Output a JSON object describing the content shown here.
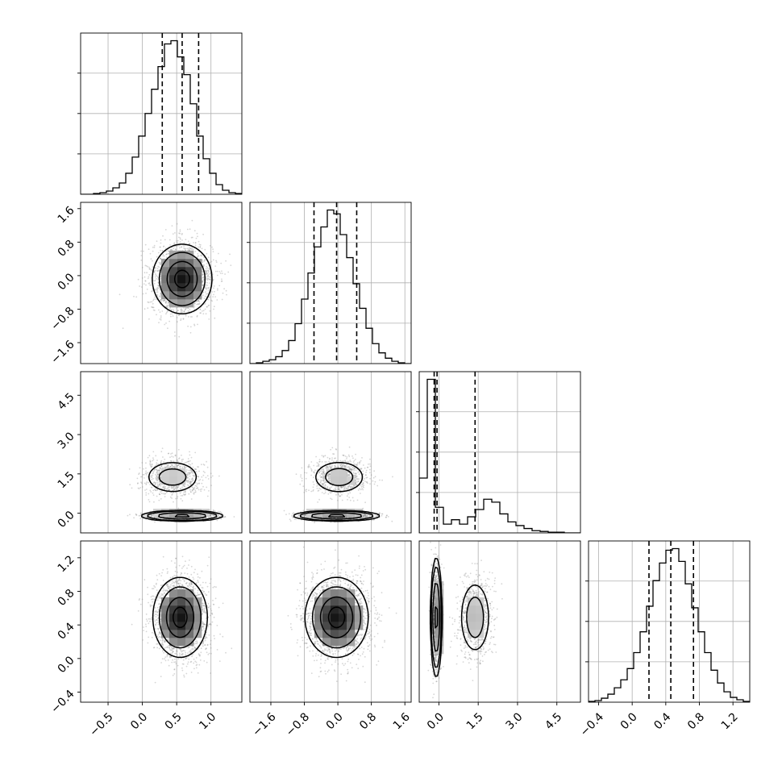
{
  "colors": {
    "line": "#000000",
    "grid": "#b0b0b0",
    "scatter": "#8a8a8a",
    "background": "#ffffff"
  },
  "chart_data": {
    "type": "corner",
    "grid": true,
    "parameters": 4,
    "ranges": [
      [
        -0.9,
        1.45
      ],
      [
        -2.1,
        1.75
      ],
      [
        -0.75,
        5.4
      ],
      [
        -0.52,
        1.4
      ]
    ],
    "ticks": [
      [
        -0.5,
        0.0,
        0.5,
        1.0
      ],
      [
        -1.6,
        -0.8,
        0.0,
        0.8,
        1.6
      ],
      [
        0.0,
        1.5,
        3.0,
        4.5
      ],
      [
        -0.4,
        0.0,
        0.4,
        0.8,
        1.2
      ]
    ],
    "tick_labels": [
      [
        "−0.5",
        "0.0",
        "0.5",
        "1.0"
      ],
      [
        "−1.6",
        "−0.8",
        "0.0",
        "0.8",
        "1.6"
      ],
      [
        "0.0",
        "1.5",
        "3.0",
        "4.5"
      ],
      [
        "−0.4",
        "0.0",
        "0.4",
        "0.8",
        "1.2"
      ]
    ],
    "quantiles": [
      [
        0.29,
        0.58,
        0.82
      ],
      [
        -0.57,
        -0.03,
        0.45
      ],
      [
        -0.18,
        -0.07,
        1.38
      ],
      [
        0.2,
        0.46,
        0.73
      ]
    ],
    "histograms": [
      {
        "type": "histogram",
        "bins": [
          -0.9,
          1.45
        ],
        "counts": [
          0,
          0,
          1,
          2,
          4,
          8,
          14,
          26,
          46,
          72,
          100,
          130,
          158,
          186,
          190,
          170,
          148,
          112,
          72,
          44,
          26,
          12,
          5,
          2,
          1
        ]
      },
      {
        "type": "histogram",
        "bins": [
          -2.1,
          1.75
        ],
        "counts": [
          0,
          1,
          3,
          5,
          9,
          17,
          30,
          52,
          84,
          118,
          152,
          178,
          200,
          195,
          168,
          138,
          104,
          72,
          46,
          26,
          14,
          7,
          3,
          1,
          0
        ]
      },
      {
        "type": "histogram",
        "bins": [
          -0.75,
          5.4
        ],
        "counts": [
          75,
          210,
          35,
          12,
          18,
          12,
          22,
          32,
          46,
          42,
          26,
          15,
          10,
          6,
          3,
          2,
          1,
          1,
          0,
          0
        ]
      },
      {
        "type": "histogram",
        "bins": [
          -0.52,
          1.4
        ],
        "counts": [
          1,
          2,
          5,
          10,
          18,
          28,
          42,
          62,
          88,
          120,
          152,
          174,
          190,
          192,
          176,
          148,
          118,
          88,
          62,
          40,
          24,
          13,
          6,
          3,
          1
        ]
      }
    ],
    "pairs": [
      {
        "type": "scatter",
        "x_param": 0,
        "y_param": 1,
        "components": [
          {
            "weight": 1.0,
            "mean": [
              0.58,
              -0.08
            ],
            "sd": [
              0.22,
              0.42
            ]
          }
        ]
      },
      {
        "type": "scatter",
        "x_param": 0,
        "y_param": 2,
        "components": [
          {
            "weight": 0.62,
            "mean": [
              0.58,
              -0.1
            ],
            "sd": [
              0.24,
              0.08
            ]
          },
          {
            "weight": 0.38,
            "mean": [
              0.44,
              1.38
            ],
            "sd": [
              0.22,
              0.35
            ]
          }
        ]
      },
      {
        "type": "scatter",
        "x_param": 1,
        "y_param": 2,
        "components": [
          {
            "weight": 0.62,
            "mean": [
              -0.03,
              -0.1
            ],
            "sd": [
              0.42,
              0.08
            ]
          },
          {
            "weight": 0.38,
            "mean": [
              0.03,
              1.38
            ],
            "sd": [
              0.35,
              0.35
            ]
          }
        ]
      },
      {
        "type": "scatter",
        "x_param": 0,
        "y_param": 3,
        "components": [
          {
            "weight": 1.0,
            "mean": [
              0.55,
              0.49
            ],
            "sd": [
              0.2,
              0.24
            ]
          }
        ]
      },
      {
        "type": "scatter",
        "x_param": 1,
        "y_param": 3,
        "components": [
          {
            "weight": 1.0,
            "mean": [
              -0.03,
              0.49
            ],
            "sd": [
              0.38,
              0.24
            ]
          }
        ]
      },
      {
        "type": "scatter",
        "x_param": 2,
        "y_param": 3,
        "components": [
          {
            "weight": 0.62,
            "mean": [
              -0.1,
              0.49
            ],
            "sd": [
              0.09,
              0.3
            ]
          },
          {
            "weight": 0.38,
            "mean": [
              1.38,
              0.49
            ],
            "sd": [
              0.32,
              0.24
            ]
          }
        ]
      }
    ],
    "contour_levels": [
      0.12,
      0.39,
      0.68,
      0.86
    ]
  }
}
